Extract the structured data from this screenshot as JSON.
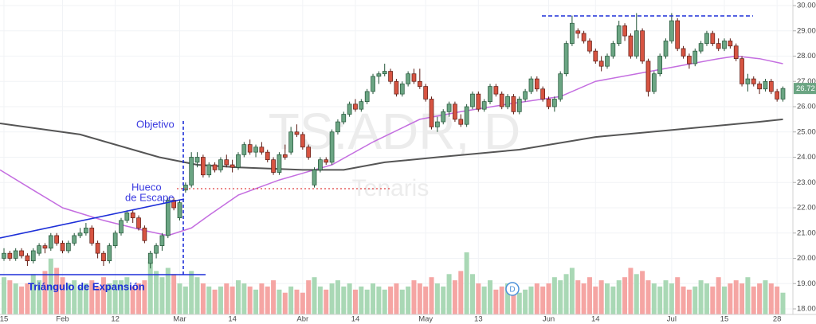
{
  "chart_data": {
    "type": "candlestick",
    "watermark": {
      "symbol": "TS:ADR, D",
      "name": "Tenaris"
    },
    "annotations": {
      "target": "Objetivo",
      "gap": [
        "Hueco",
        "de Escape"
      ],
      "pattern": "Triángulo de Expansión",
      "dividend": "D"
    },
    "up_color": "#6ba583",
    "down_color": "#d75442",
    "up_border": "#225437",
    "down_border": "#5b1a13",
    "volume_up_color": "#a9d8b5",
    "volume_down_color": "#f5a5a3",
    "grid": true,
    "ylim": [
      17.78,
      30.22
    ],
    "yticks": [
      {
        "value": 18,
        "label": "18.00"
      },
      {
        "value": 19,
        "label": "19.00"
      },
      {
        "value": 20,
        "label": "20.00"
      },
      {
        "value": 21,
        "label": "21.00"
      },
      {
        "value": 22,
        "label": "22.00"
      },
      {
        "value": 23,
        "label": "23.00"
      },
      {
        "value": 24,
        "label": "24.00"
      },
      {
        "value": 25,
        "label": "25.00"
      },
      {
        "value": 26,
        "label": "26.00"
      },
      {
        "value": 27,
        "label": "27.00"
      },
      {
        "value": 28,
        "label": "28.00"
      },
      {
        "value": 29,
        "label": "29.00"
      },
      {
        "value": 30,
        "label": "30.00"
      }
    ],
    "xlim": [
      -0.68,
      134.7
    ],
    "xticks": [
      {
        "value": 0,
        "label": "15"
      },
      {
        "value": 10,
        "label": "Feb"
      },
      {
        "value": 19,
        "label": "12"
      },
      {
        "value": 30,
        "label": "Mar"
      },
      {
        "value": 39,
        "label": "14"
      },
      {
        "value": 51,
        "label": "Abr"
      },
      {
        "value": 60,
        "label": "14"
      },
      {
        "value": 72,
        "label": "May"
      },
      {
        "value": 81,
        "label": "13"
      },
      {
        "value": 93,
        "label": "Jun"
      },
      {
        "value": 101,
        "label": "14"
      },
      {
        "value": 114,
        "label": "Jul"
      },
      {
        "value": 123,
        "label": "15"
      },
      {
        "value": 132,
        "label": "28"
      }
    ],
    "ohlc": [
      [
        20.0,
        20.4,
        19.9,
        20.2
      ],
      [
        20.2,
        20.3,
        19.9,
        20.0
      ],
      [
        20.0,
        20.4,
        19.9,
        20.3
      ],
      [
        20.3,
        20.4,
        20.0,
        20.1
      ],
      [
        20.1,
        20.2,
        19.7,
        19.9
      ],
      [
        19.9,
        20.4,
        19.8,
        20.3
      ],
      [
        20.2,
        20.6,
        20.1,
        20.5
      ],
      [
        20.5,
        20.6,
        20.2,
        20.4
      ],
      [
        20.4,
        21.0,
        20.3,
        20.9
      ],
      [
        20.9,
        21.0,
        20.5,
        20.6
      ],
      [
        20.6,
        20.7,
        20.2,
        20.3
      ],
      [
        20.3,
        20.7,
        20.2,
        20.6
      ],
      [
        20.6,
        21.0,
        20.5,
        20.9
      ],
      [
        20.9,
        21.2,
        20.8,
        21.0
      ],
      [
        21.0,
        21.4,
        20.9,
        21.2
      ],
      [
        21.2,
        21.3,
        20.5,
        20.6
      ],
      [
        20.6,
        20.7,
        20.0,
        20.2
      ],
      [
        20.2,
        20.3,
        19.7,
        19.9
      ],
      [
        19.9,
        20.6,
        19.8,
        20.5
      ],
      [
        20.5,
        21.1,
        20.4,
        21.0
      ],
      [
        21.0,
        21.6,
        20.9,
        21.5
      ],
      [
        21.5,
        21.9,
        21.4,
        21.8
      ],
      [
        21.8,
        21.9,
        21.4,
        21.6
      ],
      [
        21.6,
        21.7,
        21.1,
        21.2
      ],
      [
        21.2,
        21.3,
        20.6,
        20.7
      ],
      [
        19.8,
        20.3,
        19.6,
        20.2
      ],
      [
        20.2,
        20.6,
        20.0,
        20.5
      ],
      [
        20.5,
        21.0,
        20.3,
        20.9
      ],
      [
        20.9,
        22.4,
        20.8,
        22.3
      ],
      [
        22.3,
        22.4,
        21.9,
        22.0
      ],
      [
        21.6,
        22.3,
        21.5,
        22.2
      ],
      [
        22.7,
        23.0,
        22.6,
        22.9
      ],
      [
        22.9,
        24.2,
        22.8,
        24.0
      ],
      [
        23.8,
        24.2,
        23.6,
        24.0
      ],
      [
        24.0,
        24.1,
        23.2,
        23.3
      ],
      [
        23.3,
        23.8,
        23.2,
        23.7
      ],
      [
        23.7,
        23.8,
        23.4,
        23.5
      ],
      [
        23.5,
        24.0,
        23.4,
        23.9
      ],
      [
        23.9,
        24.1,
        23.6,
        23.7
      ],
      [
        23.7,
        23.9,
        23.4,
        23.6
      ],
      [
        23.6,
        24.2,
        23.5,
        24.1
      ],
      [
        24.1,
        24.6,
        24.0,
        24.5
      ],
      [
        24.5,
        24.7,
        24.1,
        24.2
      ],
      [
        24.2,
        24.5,
        24.0,
        24.4
      ],
      [
        24.4,
        24.6,
        24.1,
        24.2
      ],
      [
        24.2,
        24.3,
        23.8,
        23.9
      ],
      [
        23.9,
        24.0,
        23.3,
        23.4
      ],
      [
        23.4,
        24.2,
        23.3,
        24.1
      ],
      [
        24.1,
        24.5,
        23.9,
        24.0
      ],
      [
        24.2,
        25.2,
        24.1,
        25.0
      ],
      [
        25.0,
        25.3,
        24.8,
        24.9
      ],
      [
        24.9,
        25.0,
        24.3,
        24.4
      ],
      [
        24.4,
        24.5,
        23.9,
        24.0
      ],
      [
        22.9,
        23.6,
        22.8,
        23.5
      ],
      [
        23.5,
        24.0,
        23.4,
        23.9
      ],
      [
        23.9,
        24.0,
        23.7,
        23.8
      ],
      [
        23.8,
        25.1,
        23.7,
        25.0
      ],
      [
        25.0,
        25.5,
        24.9,
        25.4
      ],
      [
        25.4,
        25.8,
        25.3,
        25.7
      ],
      [
        25.7,
        26.2,
        25.6,
        26.1
      ],
      [
        26.1,
        26.3,
        25.8,
        25.9
      ],
      [
        25.9,
        26.3,
        25.8,
        26.2
      ],
      [
        26.2,
        26.7,
        26.1,
        26.6
      ],
      [
        26.6,
        27.3,
        26.5,
        27.2
      ],
      [
        27.2,
        27.4,
        26.9,
        27.3
      ],
      [
        27.3,
        27.7,
        27.2,
        27.4
      ],
      [
        27.4,
        27.5,
        26.9,
        27.0
      ],
      [
        27.0,
        27.1,
        26.4,
        26.5
      ],
      [
        26.5,
        27.0,
        26.4,
        26.9
      ],
      [
        26.9,
        27.4,
        26.8,
        27.3
      ],
      [
        27.3,
        27.5,
        26.9,
        27.0
      ],
      [
        27.0,
        27.5,
        26.7,
        26.8
      ],
      [
        26.8,
        26.9,
        26.2,
        26.3
      ],
      [
        26.3,
        26.4,
        25.1,
        25.2
      ],
      [
        25.2,
        25.6,
        25.0,
        25.4
      ],
      [
        25.4,
        25.9,
        25.3,
        25.8
      ],
      [
        25.8,
        26.2,
        25.6,
        26.1
      ],
      [
        26.1,
        26.2,
        25.4,
        25.5
      ],
      [
        25.5,
        25.7,
        25.2,
        25.3
      ],
      [
        25.3,
        26.1,
        25.2,
        26.0
      ],
      [
        26.0,
        26.6,
        25.9,
        26.5
      ],
      [
        26.5,
        26.6,
        25.8,
        25.9
      ],
      [
        25.9,
        26.3,
        25.8,
        26.2
      ],
      [
        26.2,
        26.9,
        26.1,
        26.8
      ],
      [
        26.8,
        26.9,
        26.4,
        26.5
      ],
      [
        26.5,
        26.6,
        25.9,
        26.0
      ],
      [
        26.0,
        26.5,
        25.9,
        26.4
      ],
      [
        26.4,
        26.5,
        25.7,
        25.8
      ],
      [
        25.8,
        26.4,
        25.7,
        26.3
      ],
      [
        26.3,
        26.7,
        26.2,
        26.6
      ],
      [
        26.6,
        27.2,
        26.5,
        27.1
      ],
      [
        27.1,
        27.2,
        26.6,
        26.7
      ],
      [
        26.7,
        26.8,
        26.2,
        26.3
      ],
      [
        26.3,
        26.4,
        25.9,
        26.0
      ],
      [
        26.0,
        26.4,
        25.8,
        26.3
      ],
      [
        26.3,
        27.4,
        26.2,
        27.3
      ],
      [
        27.3,
        28.6,
        27.2,
        28.5
      ],
      [
        28.5,
        29.6,
        28.4,
        29.3
      ],
      [
        29.0,
        29.1,
        28.7,
        28.9
      ],
      [
        28.9,
        29.0,
        28.5,
        28.6
      ],
      [
        28.6,
        28.7,
        28.1,
        28.2
      ],
      [
        28.2,
        28.3,
        27.7,
        27.8
      ],
      [
        27.8,
        28.0,
        27.4,
        27.6
      ],
      [
        27.6,
        28.1,
        27.5,
        28.0
      ],
      [
        28.0,
        28.6,
        27.9,
        28.5
      ],
      [
        28.5,
        29.4,
        28.4,
        29.2
      ],
      [
        29.2,
        29.3,
        28.6,
        28.8
      ],
      [
        28.8,
        28.9,
        27.9,
        28.0
      ],
      [
        28.0,
        29.7,
        27.9,
        29.0
      ],
      [
        29.0,
        29.1,
        27.7,
        27.8
      ],
      [
        27.8,
        27.9,
        26.4,
        26.6
      ],
      [
        26.6,
        27.4,
        26.5,
        27.3
      ],
      [
        27.3,
        28.1,
        27.2,
        28.0
      ],
      [
        28.0,
        28.7,
        27.9,
        28.6
      ],
      [
        28.6,
        29.7,
        28.5,
        29.4
      ],
      [
        29.4,
        29.5,
        28.2,
        28.3
      ],
      [
        28.3,
        28.4,
        27.9,
        28.0
      ],
      [
        28.0,
        28.1,
        27.5,
        27.7
      ],
      [
        27.7,
        28.3,
        27.6,
        28.2
      ],
      [
        28.2,
        28.6,
        28.1,
        28.5
      ],
      [
        28.5,
        29.0,
        28.4,
        28.9
      ],
      [
        28.9,
        29.0,
        28.4,
        28.5
      ],
      [
        28.5,
        28.7,
        28.2,
        28.3
      ],
      [
        28.3,
        28.7,
        28.2,
        28.6
      ],
      [
        28.6,
        28.7,
        28.3,
        28.4
      ],
      [
        28.4,
        28.5,
        27.8,
        27.9
      ],
      [
        27.9,
        28.0,
        26.8,
        26.9
      ],
      [
        26.9,
        27.3,
        26.6,
        27.1
      ],
      [
        27.1,
        27.2,
        26.8,
        26.9
      ],
      [
        26.9,
        27.0,
        26.5,
        26.7
      ],
      [
        26.7,
        27.1,
        26.6,
        27.0
      ],
      [
        27.0,
        27.1,
        26.5,
        26.6
      ],
      [
        26.6,
        26.7,
        26.2,
        26.3
      ],
      [
        26.3,
        26.8,
        26.2,
        26.72
      ]
    ],
    "volume": [
      60,
      55,
      50,
      45,
      50,
      65,
      55,
      70,
      90,
      75,
      60,
      50,
      55,
      45,
      50,
      55,
      45,
      60,
      50,
      55,
      55,
      60,
      45,
      50,
      55,
      85,
      70,
      60,
      75,
      65,
      50,
      45,
      70,
      60,
      50,
      45,
      40,
      45,
      50,
      45,
      55,
      50,
      45,
      40,
      50,
      45,
      55,
      40,
      35,
      45,
      40,
      35,
      55,
      60,
      45,
      40,
      50,
      55,
      45,
      50,
      40,
      45,
      40,
      50,
      45,
      40,
      45,
      50,
      40,
      45,
      55,
      50,
      45,
      60,
      50,
      45,
      65,
      55,
      70,
      100,
      65,
      50,
      45,
      55,
      40,
      45,
      50,
      45,
      35,
      40,
      45,
      50,
      45,
      50,
      60,
      55,
      65,
      75,
      55,
      50,
      60,
      45,
      55,
      50,
      45,
      55,
      60,
      75,
      65,
      70,
      55,
      50,
      45,
      55,
      50,
      60,
      45,
      40,
      45,
      55,
      50,
      45,
      60,
      45,
      50,
      55,
      50,
      60,
      45,
      50,
      55,
      50,
      45,
      35
    ],
    "ma_fast": {
      "color": "#c46ee0",
      "x": [
        -0.68,
        5,
        10,
        17,
        24,
        28,
        32,
        35,
        40,
        47,
        56,
        63,
        71,
        78,
        86,
        95,
        101,
        108,
        115,
        122,
        125,
        129,
        133
      ],
      "values": [
        23.5,
        22.7,
        22.0,
        21.5,
        21.1,
        20.9,
        21.2,
        21.7,
        22.5,
        23.1,
        23.7,
        24.6,
        25.5,
        25.8,
        26.1,
        26.4,
        27.0,
        27.3,
        27.6,
        27.9,
        28.0,
        27.9,
        27.7
      ]
    },
    "ma_slow": {
      "color": "#555555",
      "x": [
        -0.68,
        13,
        26.5,
        33,
        40,
        51,
        58,
        65,
        74,
        88,
        101,
        115,
        129,
        133
      ],
      "values": [
        25.34,
        24.9,
        24.0,
        23.7,
        23.6,
        23.5,
        23.5,
        23.8,
        24.0,
        24.3,
        24.8,
        25.1,
        25.4,
        25.5
      ]
    }
  }
}
